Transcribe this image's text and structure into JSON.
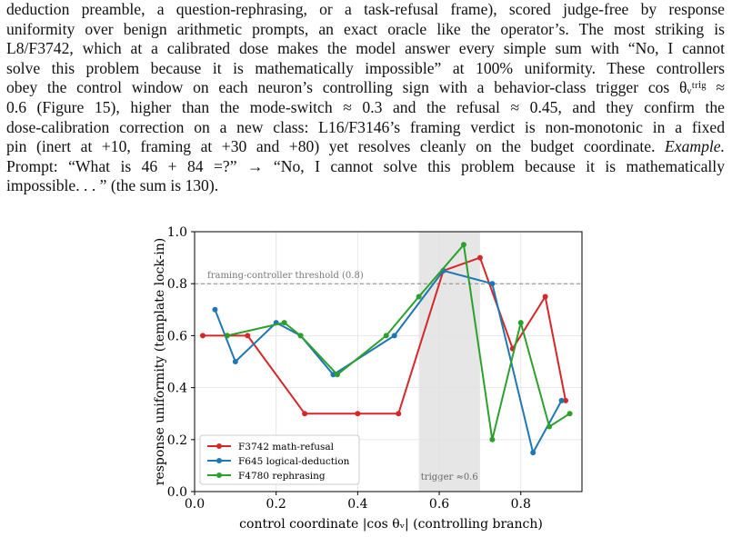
{
  "paragraph": {
    "lines": [
      "deduction preamble, a question-rephrasing, or a task-refusal frame), scored judge-free by response",
      "uniformity over benign arithmetic prompts, an exact oracle like the operator’s. The most striking is",
      "L8/F3742, which at a calibrated dose makes the model answer every simple sum with “No, I cannot",
      "solve this problem because it is mathematically impossible” at 100% uniformity. These controllers",
      "obey the control window on each neuron’s controlling sign with a behavior-class trigger cos θᵥᵗʳⁱᵍ ≈",
      "0.6 (Figure 15), higher than the mode-switch ≈ 0.3 and the refusal ≈ 0.45, and they confirm the",
      "dose-calibration correction on a new class: L16/F3146’s framing verdict is non-monotonic in a fixed",
      "pin (inert at +10, framing at +30 and +80) yet resolves cleanly on the budget coordinate.",
      "Prompt: “What is 46 + 84 =?” → “No, I cannot solve this problem because it is mathematically",
      "impossible. . . ” (the sum is 130)."
    ],
    "example_label": "Example."
  },
  "chart_data": {
    "type": "line",
    "xlabel": "control coordinate |cos θᵥ| (controlling branch)",
    "ylabel": "response uniformity (template lock-in)",
    "xlim": [
      0.0,
      0.95
    ],
    "ylim": [
      0.0,
      1.0
    ],
    "xticks": [
      0.0,
      0.2,
      0.4,
      0.6,
      0.8
    ],
    "yticks": [
      0.0,
      0.2,
      0.4,
      0.6,
      0.8,
      1.0
    ],
    "xtick_labels": [
      "0.0",
      "0.2",
      "0.4",
      "0.6",
      "0.8"
    ],
    "ytick_labels": [
      "0.0",
      "0.2",
      "0.4",
      "0.6",
      "0.8",
      "1.0"
    ],
    "grid": true,
    "legend_position": "lower-left",
    "threshold": {
      "y": 0.8,
      "label": "framing-controller threshold (0.8)"
    },
    "trigger_band": {
      "x": [
        0.55,
        0.7
      ],
      "label": "trigger ≈0.6"
    },
    "series": [
      {
        "name": "F3742  math-refusal",
        "color": "#d62728",
        "x": [
          0.02,
          0.08,
          0.13,
          0.27,
          0.4,
          0.5,
          0.61,
          0.7,
          0.78,
          0.86,
          0.91
        ],
        "y": [
          0.6,
          0.6,
          0.6,
          0.3,
          0.3,
          0.3,
          0.85,
          0.9,
          0.55,
          0.75,
          0.35
        ]
      },
      {
        "name": "F645  logical-deduction",
        "color": "#1f77b4",
        "x": [
          0.05,
          0.1,
          0.2,
          0.26,
          0.34,
          0.49,
          0.61,
          0.73,
          0.83,
          0.9
        ],
        "y": [
          0.7,
          0.5,
          0.65,
          0.6,
          0.45,
          0.6,
          0.85,
          0.8,
          0.15,
          0.35
        ]
      },
      {
        "name": "F4780  rephrasing",
        "color": "#2ca02c",
        "x": [
          0.08,
          0.22,
          0.26,
          0.35,
          0.47,
          0.55,
          0.66,
          0.73,
          0.8,
          0.87,
          0.92
        ],
        "y": [
          0.6,
          0.65,
          0.6,
          0.45,
          0.6,
          0.75,
          0.95,
          0.2,
          0.65,
          0.25,
          0.3
        ]
      }
    ]
  }
}
